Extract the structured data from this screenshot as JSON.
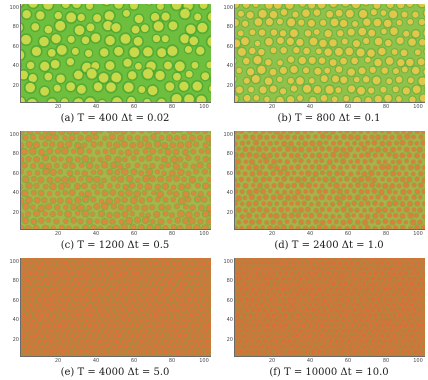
{
  "figure": {
    "panels": [
      {
        "caption": "(a) T = 400 Δt = 0.02",
        "ticks": {
          "y": [
            "100",
            "80",
            "60",
            "40",
            "20"
          ],
          "x": [
            "20",
            "40",
            "60",
            "80",
            "100"
          ]
        },
        "pattern": {
          "background": "#6fbf3e",
          "spot": "#c9d94a",
          "ring": "#3f9a2e"
        }
      },
      {
        "caption": "(b) T = 800 Δt = 0.1",
        "ticks": {
          "y": [
            "100",
            "80",
            "60",
            "40",
            "20"
          ],
          "x": [
            "20",
            "40",
            "60",
            "80",
            "100"
          ]
        },
        "pattern": {
          "background": "#8ec24a",
          "spot": "#e1c84a",
          "ring": "#5aa53a"
        }
      },
      {
        "caption": "(c) T = 1200 Δt = 0.5",
        "ticks": {
          "y": [
            "100",
            "80",
            "60",
            "40",
            "20"
          ],
          "x": [
            "20",
            "40",
            "60",
            "80",
            "100"
          ]
        },
        "pattern": {
          "background": "#a6b64a",
          "spot": "#d98a3e",
          "ring": "#6fa33c"
        }
      },
      {
        "caption": "(d) T = 2400 Δt = 1.0",
        "ticks": {
          "y": [
            "100",
            "80",
            "60",
            "40",
            "20"
          ],
          "x": [
            "20",
            "40",
            "60",
            "80",
            "100"
          ]
        },
        "pattern": {
          "background": "#aab24a",
          "spot": "#d8803c",
          "ring": "#78a63e"
        }
      },
      {
        "caption": "(e) T = 4000 Δt = 5.0",
        "ticks": {
          "y": [
            "100",
            "80",
            "60",
            "40",
            "20"
          ],
          "x": [
            "20",
            "40",
            "60",
            "80",
            "100"
          ]
        },
        "pattern": {
          "background": "#c97a3e",
          "spot": "#e07038",
          "ring": "#7da444"
        }
      },
      {
        "caption": "(f) T = 10000 Δt = 10.0",
        "ticks": {
          "y": [
            "100",
            "80",
            "60",
            "40",
            "20"
          ],
          "x": [
            "20",
            "40",
            "60",
            "80",
            "100"
          ]
        },
        "pattern": {
          "background": "#c8783c",
          "spot": "#df6c36",
          "ring": "#82a646"
        }
      }
    ]
  }
}
